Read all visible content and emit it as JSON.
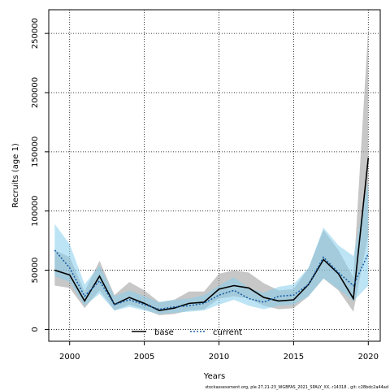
{
  "chart_data": {
    "type": "line",
    "title": "",
    "xlabel": "Years",
    "ylabel": "Recruits (age 1)",
    "xlim": [
      1998.6,
      2020.8
    ],
    "ylim": [
      -10000,
      270000
    ],
    "x_ticks": [
      2000,
      2005,
      2010,
      2015,
      2020
    ],
    "x_tick_labels": [
      "2000",
      "2005",
      "2010",
      "2015",
      "2020"
    ],
    "y_ticks": [
      0,
      50000,
      100000,
      150000,
      200000,
      250000
    ],
    "y_tick_labels": [
      "0",
      "50000",
      "100000",
      "150000",
      "200000",
      "250000"
    ],
    "grid": true,
    "legend_position": "bottom",
    "footnote": "stockassessment.org, ple.27.21-23_WGBFAS_2021_SPALY_XX, r14318 , git: c28bdc2a44ad",
    "x": [
      1999,
      2000,
      2001,
      2002,
      2003,
      2004,
      2005,
      2006,
      2007,
      2008,
      2009,
      2010,
      2011,
      2012,
      2013,
      2014,
      2015,
      2016,
      2017,
      2018,
      2019,
      2020
    ],
    "series": [
      {
        "name": "base",
        "color": "#000000",
        "dash": "solid",
        "values": [
          50000,
          46000,
          24000,
          45000,
          21000,
          27000,
          22000,
          16000,
          18000,
          22000,
          23000,
          34000,
          37000,
          35000,
          27000,
          24000,
          25000,
          38000,
          59000,
          47000,
          26000,
          145000
        ],
        "lower": [
          37000,
          35000,
          18000,
          33000,
          16000,
          21000,
          17000,
          12000,
          13000,
          16000,
          17000,
          26000,
          28000,
          26000,
          20000,
          17000,
          18000,
          28000,
          43000,
          33000,
          15000,
          80000
        ],
        "upper": [
          67000,
          61000,
          32000,
          58000,
          29000,
          40000,
          33000,
          23000,
          25000,
          32000,
          32000,
          47000,
          50000,
          48000,
          39000,
          33000,
          34000,
          52000,
          84000,
          67000,
          44000,
          255000
        ],
        "band_color": "#999999"
      },
      {
        "name": "current",
        "color": "#1a5fa8",
        "dash": "dotted",
        "values": [
          67000,
          52000,
          28000,
          41000,
          21000,
          25000,
          21000,
          17000,
          19000,
          20000,
          22000,
          29000,
          33000,
          26000,
          23000,
          28000,
          29000,
          38000,
          61000,
          48000,
          37000,
          64000
        ],
        "lower": [
          45000,
          40000,
          20000,
          30000,
          16000,
          19000,
          16000,
          13000,
          14000,
          15000,
          16000,
          21000,
          25000,
          20000,
          17000,
          20000,
          21000,
          28000,
          43000,
          34000,
          24000,
          37000
        ],
        "upper": [
          89000,
          72000,
          38000,
          54000,
          28000,
          33000,
          28000,
          23000,
          25000,
          26000,
          29000,
          37000,
          44000,
          35000,
          31000,
          36000,
          38000,
          52000,
          86000,
          71000,
          62000,
          125000
        ],
        "band_color": "#87ceeb"
      }
    ]
  }
}
